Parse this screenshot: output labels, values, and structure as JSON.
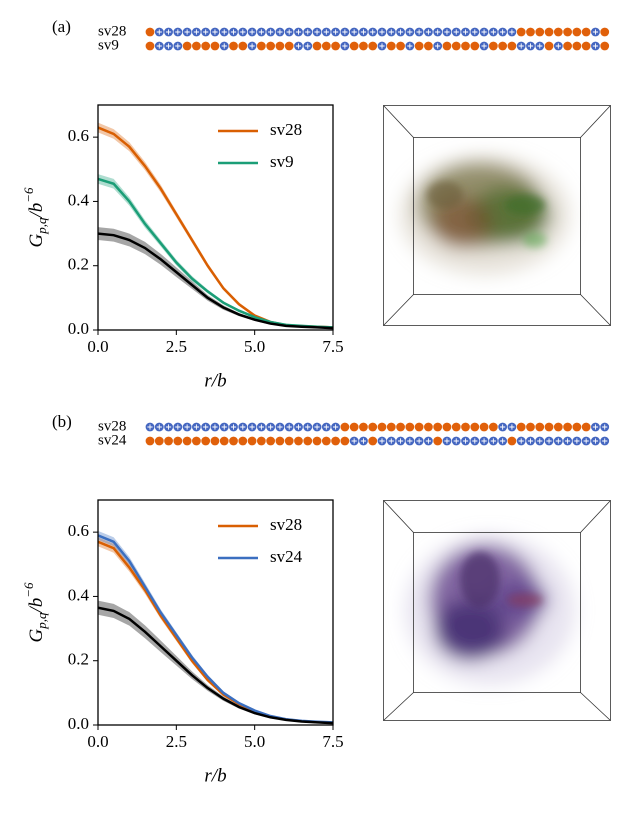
{
  "chart_data": [
    {
      "type": "line",
      "panel_label": "(a)",
      "residue_colors": {
        "E": "#e0600a",
        "K": "#4466c0"
      },
      "sequences": [
        {
          "name": "sv28",
          "residues": "EKKKKKKKKKKKKKKKKKKKKKKKKKKKKKKKKKKKKKKKEEEEEEEEKE"
        },
        {
          "name": "sv9",
          "residues": "EKKKEEEEKEEKEEEEKKEEEKEEEKEEKEEKEEEEKEEEKKKEKEEEKE"
        }
      ],
      "x_label": "r/b",
      "y_label": {
        "main": "G",
        "sub": "p,q",
        "mid": "/b",
        "sup": "−6"
      },
      "x": [
        0,
        0.5,
        1,
        1.5,
        2,
        2.5,
        3,
        3.5,
        4,
        4.5,
        5,
        5.5,
        6,
        6.5,
        7,
        7.5
      ],
      "xlim": [
        0,
        7.5
      ],
      "ylim": [
        0,
        0.7
      ],
      "xticks": [
        {
          "value": 0,
          "label": "0.0"
        },
        {
          "value": 2.5,
          "label": "2.5"
        },
        {
          "value": 5,
          "label": "5.0"
        },
        {
          "value": 7.5,
          "label": "7.5"
        }
      ],
      "yticks": [
        {
          "value": 0,
          "label": "0.0"
        },
        {
          "value": 0.2,
          "label": "0.2"
        },
        {
          "value": 0.4,
          "label": "0.4"
        },
        {
          "value": 0.6,
          "label": "0.6"
        }
      ],
      "legend": "upper right",
      "series": [
        {
          "name": "sv28",
          "color": "#d95f02",
          "values": [
            0.63,
            0.61,
            0.57,
            0.51,
            0.44,
            0.36,
            0.28,
            0.2,
            0.13,
            0.08,
            0.045,
            0.025,
            0.015,
            0.012,
            0.01,
            0.008
          ],
          "errors": [
            0.015,
            0.015,
            0.014,
            0.013,
            0.012,
            0.01,
            0.009,
            0.008,
            0.006,
            0.005,
            0.004,
            0.003,
            0.003,
            0.003,
            0.002,
            0.002
          ]
        },
        {
          "name": "sv9",
          "color": "#1b9e77",
          "values": [
            0.47,
            0.455,
            0.4,
            0.33,
            0.27,
            0.21,
            0.16,
            0.12,
            0.085,
            0.06,
            0.04,
            0.025,
            0.016,
            0.013,
            0.01,
            0.008
          ],
          "errors": [
            0.015,
            0.015,
            0.013,
            0.012,
            0.01,
            0.009,
            0.008,
            0.006,
            0.005,
            0.004,
            0.004,
            0.003,
            0.003,
            0.003,
            0.002,
            0.002
          ]
        },
        {
          "color": "#000000",
          "values": [
            0.3,
            0.295,
            0.28,
            0.255,
            0.22,
            0.18,
            0.14,
            0.1,
            0.07,
            0.048,
            0.032,
            0.02,
            0.013,
            0.01,
            0.008,
            0.006
          ],
          "errors": [
            0.02,
            0.02,
            0.02,
            0.019,
            0.017,
            0.015,
            0.012,
            0.009,
            0.007,
            0.005,
            0.004,
            0.003,
            0.002,
            0.002,
            0.002,
            0.002
          ]
        }
      ]
    },
    {
      "type": "line",
      "panel_label": "(b)",
      "residue_colors": {
        "E": "#e0600a",
        "K": "#4466c0"
      },
      "sequences": [
        {
          "name": "sv28",
          "residues": "KKKKKKKKKKKKKKKKKKKKKEEEEEEEEEEEEEEEEEKKEEEEEEEEKK"
        },
        {
          "name": "sv24",
          "residues": "EEEEEEEEEEEEEEEEEEEEEEKKEKKKKKKEKKKKKKKEKKKKKKKKKK"
        }
      ],
      "x_label": "r/b",
      "y_label": {
        "main": "G",
        "sub": "p,q",
        "mid": "/b",
        "sup": "−6"
      },
      "x": [
        0,
        0.5,
        1,
        1.5,
        2,
        2.5,
        3,
        3.5,
        4,
        4.5,
        5,
        5.5,
        6,
        6.5,
        7,
        7.5
      ],
      "xlim": [
        0,
        7.5
      ],
      "ylim": [
        0,
        0.7
      ],
      "xticks": [
        {
          "value": 0,
          "label": "0.0"
        },
        {
          "value": 2.5,
          "label": "2.5"
        },
        {
          "value": 5,
          "label": "5.0"
        },
        {
          "value": 7.5,
          "label": "7.5"
        }
      ],
      "yticks": [
        {
          "value": 0,
          "label": "0.0"
        },
        {
          "value": 0.2,
          "label": "0.2"
        },
        {
          "value": 0.4,
          "label": "0.4"
        },
        {
          "value": 0.6,
          "label": "0.6"
        }
      ],
      "legend": "upper right",
      "series": [
        {
          "name": "sv28",
          "color": "#d95f02",
          "values": [
            0.57,
            0.55,
            0.49,
            0.42,
            0.34,
            0.27,
            0.2,
            0.14,
            0.095,
            0.065,
            0.043,
            0.027,
            0.017,
            0.012,
            0.009,
            0.007
          ],
          "errors": [
            0.014,
            0.014,
            0.013,
            0.012,
            0.01,
            0.009,
            0.008,
            0.006,
            0.005,
            0.004,
            0.003,
            0.003,
            0.002,
            0.002,
            0.002,
            0.002
          ]
        },
        {
          "name": "sv24",
          "color": "#3b6fc0",
          "values": [
            0.59,
            0.57,
            0.51,
            0.43,
            0.35,
            0.28,
            0.21,
            0.15,
            0.1,
            0.068,
            0.045,
            0.028,
            0.018,
            0.013,
            0.01,
            0.008
          ],
          "errors": [
            0.014,
            0.014,
            0.013,
            0.012,
            0.01,
            0.009,
            0.008,
            0.006,
            0.005,
            0.004,
            0.003,
            0.003,
            0.002,
            0.002,
            0.002,
            0.002
          ]
        },
        {
          "color": "#000000",
          "values": [
            0.365,
            0.355,
            0.33,
            0.29,
            0.245,
            0.2,
            0.155,
            0.115,
            0.082,
            0.056,
            0.037,
            0.024,
            0.016,
            0.011,
            0.008,
            0.006
          ],
          "errors": [
            0.022,
            0.022,
            0.021,
            0.02,
            0.018,
            0.015,
            0.012,
            0.009,
            0.007,
            0.005,
            0.004,
            0.003,
            0.002,
            0.002,
            0.002,
            0.002
          ]
        }
      ]
    }
  ]
}
